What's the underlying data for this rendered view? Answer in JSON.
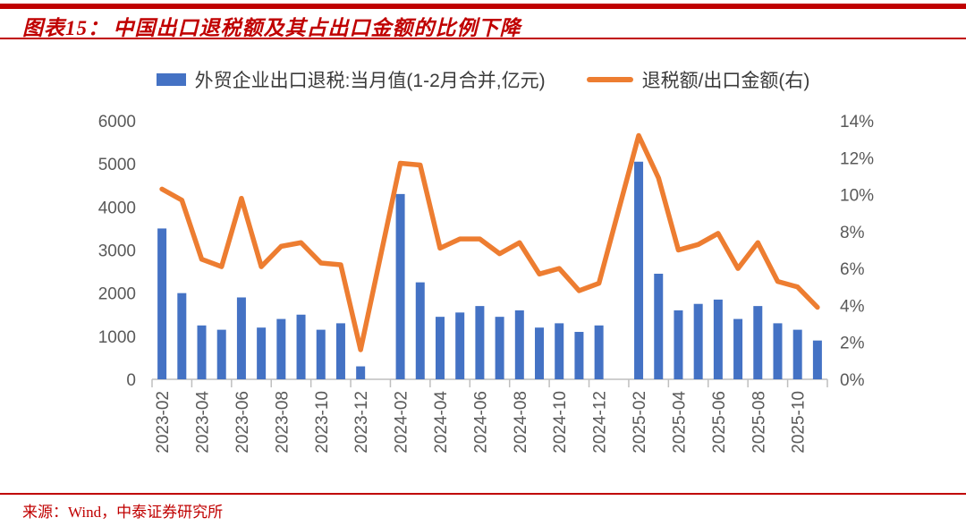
{
  "header": {
    "title_prefix": "图表15：",
    "title": "中国出口退税额及其占出口金额的比例下降"
  },
  "footer": {
    "source": "来源：Wind，中泰证券研究所"
  },
  "colors": {
    "accent_red": "#C00000",
    "bar_blue": "#4472C4",
    "line_orange": "#ED7D31",
    "axis_text": "#595959",
    "axis_line": "#BFBFBF"
  },
  "chart_data": {
    "type": "bar",
    "title": "中国出口退税额及其占出口金额的比例下降",
    "legend_position": "top-center",
    "grid": false,
    "legend": [
      {
        "label": "外贸企业出口退税:当月值(1-2月合并,亿元)",
        "marker": "bar",
        "color": "#4472C4",
        "axis": "left"
      },
      {
        "label": "退税额/出口金额(右)",
        "marker": "line",
        "color": "#ED7D31",
        "axis": "right"
      }
    ],
    "categories": [
      "2023-02",
      "2023-03",
      "2023-04",
      "2023-05",
      "2023-06",
      "2023-07",
      "2023-08",
      "2023-09",
      "2023-10",
      "2023-11",
      "2023-12",
      "2024-01",
      "2024-02",
      "2024-03",
      "2024-04",
      "2024-05",
      "2024-06",
      "2024-07",
      "2024-08",
      "2024-09",
      "2024-10",
      "2024-11",
      "2024-12",
      "2025-01",
      "2025-02",
      "2025-03",
      "2025-04",
      "2025-05",
      "2025-06",
      "2025-07",
      "2025-08",
      "2025-09",
      "2025-10",
      "2025-11"
    ],
    "series": [
      {
        "name": "外贸企业出口退税:当月值(1-2月合并,亿元)",
        "type": "bar",
        "axis": "left",
        "values": [
          3500,
          2000,
          1250,
          1150,
          1900,
          1200,
          1400,
          1500,
          1150,
          1300,
          300,
          null,
          4300,
          2250,
          1450,
          1550,
          1700,
          1450,
          1600,
          1200,
          1300,
          1100,
          1250,
          null,
          5050,
          2450,
          1600,
          1750,
          1850,
          1400,
          1700,
          1300,
          1150,
          900
        ]
      },
      {
        "name": "退税额/出口金额(右)",
        "type": "line",
        "axis": "right",
        "values": [
          10.3,
          9.7,
          6.5,
          6.1,
          9.8,
          6.1,
          7.2,
          7.4,
          6.3,
          6.2,
          1.6,
          null,
          11.7,
          11.6,
          7.1,
          7.6,
          7.6,
          6.8,
          7.4,
          5.7,
          6.0,
          4.8,
          5.2,
          null,
          13.2,
          10.9,
          7.0,
          7.3,
          7.9,
          6.0,
          7.4,
          5.3,
          5.0,
          3.9
        ]
      }
    ],
    "left_axis": {
      "min": 0,
      "max": 6000,
      "step": 1000,
      "ticks": [
        "0",
        "1000",
        "2000",
        "3000",
        "4000",
        "5000",
        "6000"
      ]
    },
    "right_axis": {
      "min": 0,
      "max": 14,
      "step": 2,
      "ticks": [
        "0%",
        "2%",
        "4%",
        "6%",
        "8%",
        "10%",
        "12%",
        "14%"
      ]
    },
    "x_tick_labels": [
      "2023-02",
      "2023-04",
      "2023-06",
      "2023-08",
      "2023-10",
      "2023-12",
      "2024-02",
      "2024-04",
      "2024-06",
      "2024-08",
      "2024-10",
      "2024-12",
      "2025-02",
      "2025-04",
      "2025-06",
      "2025-08",
      "2025-10"
    ]
  }
}
